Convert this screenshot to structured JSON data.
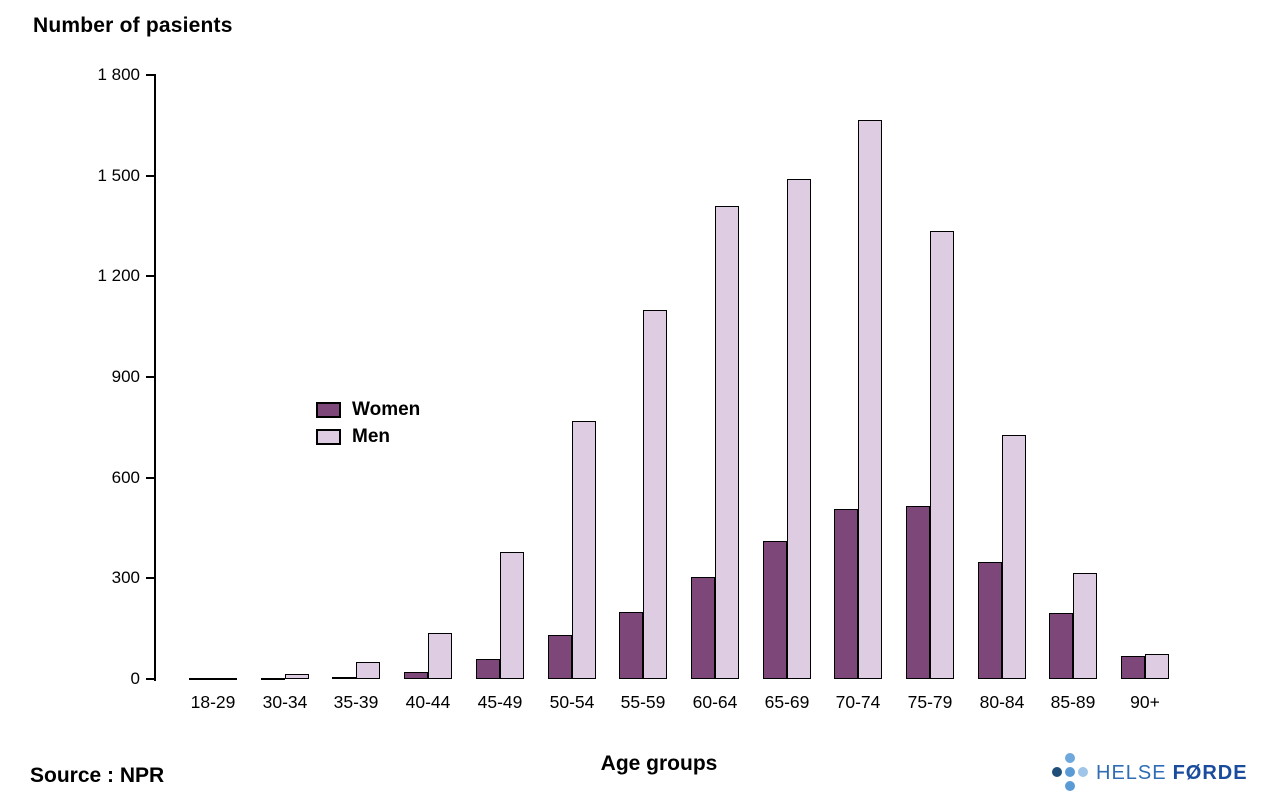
{
  "page": {
    "title": "Number of pasients",
    "source": "Source : NPR",
    "xlabel": "Age groups"
  },
  "legend": {
    "women_label": "Women",
    "men_label": "Men"
  },
  "logo": {
    "part1": "HELSE",
    "part2": "FØRDE",
    "dot_colors": {
      "left": "#1f4e79",
      "top": "#6fa8dc",
      "center": "#5b9bd5",
      "right": "#9fc5e8",
      "bottom": "#5b9bd5"
    }
  },
  "chart_data": {
    "type": "bar",
    "title": "Number of pasients",
    "xlabel": "Age groups",
    "ylabel": "Number of pasients",
    "ylim": [
      0,
      1800
    ],
    "ytick_step": 300,
    "ytick_labels": [
      "0",
      "300",
      "600",
      "900",
      "1 200",
      "1 500",
      "1 800"
    ],
    "grid": false,
    "legend_position": "inside-left-middle",
    "categories": [
      "18-29",
      "30-34",
      "35-39",
      "40-44",
      "45-49",
      "50-54",
      "55-59",
      "60-64",
      "65-69",
      "70-74",
      "75-79",
      "80-84",
      "85-89",
      "90+"
    ],
    "series": [
      {
        "name": "Women",
        "color": "#7d477a",
        "values": [
          2,
          3,
          7,
          21,
          59,
          131,
          199,
          305,
          411,
          506,
          516,
          349,
          197,
          68
        ]
      },
      {
        "name": "Men",
        "color": "#decde2",
        "values": [
          2,
          15,
          52,
          136,
          377,
          770,
          1099,
          1409,
          1491,
          1665,
          1336,
          728,
          316,
          74
        ]
      }
    ]
  }
}
